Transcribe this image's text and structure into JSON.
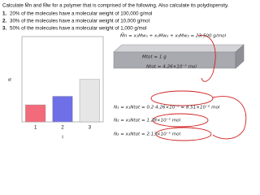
{
  "problem": {
    "intro": "Calculate M̄n and M̄w for a polymer that is comprised of the following. Also calculate its polydispersity.",
    "items": [
      {
        "marker": "1.",
        "text": "20% of the molecules have a molecular weight of 100,000 g/mol"
      },
      {
        "marker": "2.",
        "text": "30% of the molecules have a molecular weight of 10,000 g/mol"
      },
      {
        "marker": "3.",
        "text": "50% of the molecules have a molecular weight of 1,000 g/mol"
      }
    ]
  },
  "chart_data": {
    "type": "bar",
    "y_label": "xᵢ",
    "x_label": "i",
    "categories": [
      "1",
      "2",
      "3"
    ],
    "values": [
      0.2,
      0.3,
      0.5
    ],
    "colors": [
      "#f26b7a",
      "#6f6fe8",
      "#e6e6e6"
    ],
    "ylim": [
      0,
      1
    ]
  },
  "notes": [
    "M̄n = x₁Mw₁ + x₂Mw₂ + x₃Mw₃ = 23,500 g/mol",
    "Mtot = 1 g",
    "Ntot = 4.26×10⁻⁵ mol",
    "N₁ = x₁Ntot = 0.2·4.26×10⁻⁵ = 8.51×10⁻⁶ mol",
    "N₂ = x₂Ntot = 1.28×10⁻⁵ mol",
    "N₃ = x₃Ntot = 2.13×10⁻⁵ mol"
  ]
}
